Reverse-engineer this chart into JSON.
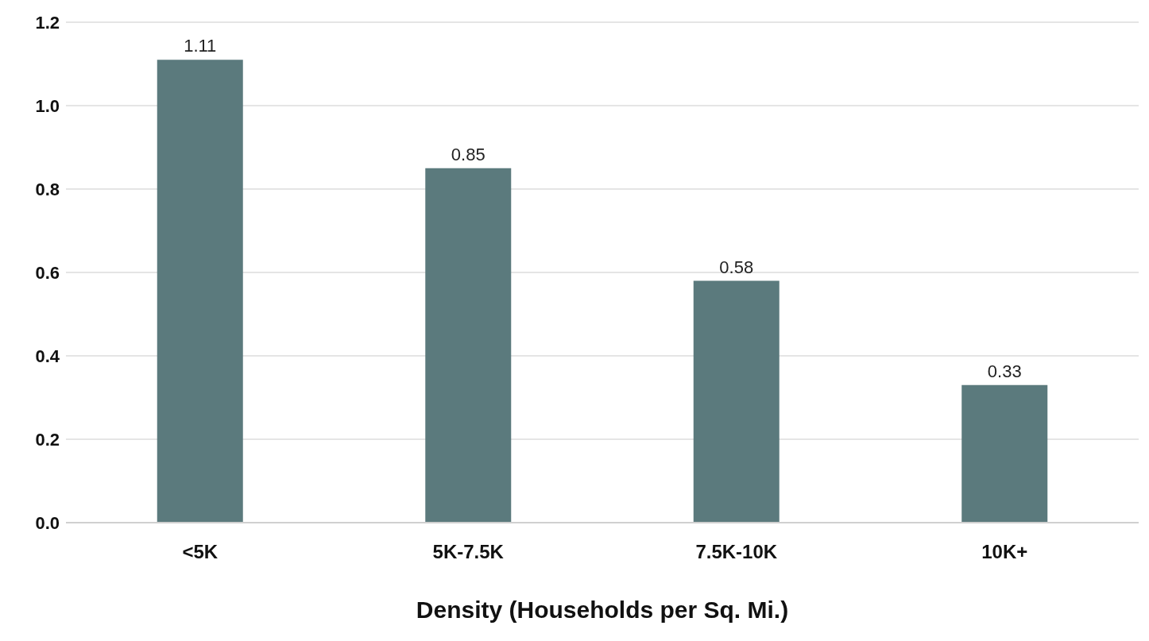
{
  "chart_data": {
    "type": "bar",
    "xlabel": "Density (Households per Sq. Mi.)",
    "categories": [
      "<5K",
      "5K-7.5K",
      "7.5K-10K",
      "10K+"
    ],
    "values": [
      1.11,
      0.85,
      0.58,
      0.33
    ],
    "color": "#5b7a7d",
    "ylim": [
      0,
      1.2
    ],
    "yticks": [
      {
        "value": 0,
        "label": "0.0"
      },
      {
        "value": 0.2,
        "label": "0.2"
      },
      {
        "value": 0.4,
        "label": "0.4"
      },
      {
        "value": 0.6,
        "label": "0.6"
      },
      {
        "value": 0.8,
        "label": "0.8"
      },
      {
        "value": 1,
        "label": "1.0"
      },
      {
        "value": 1.2,
        "label": "1.2"
      }
    ],
    "grid": "y",
    "data_labels": true,
    "legend": false
  }
}
